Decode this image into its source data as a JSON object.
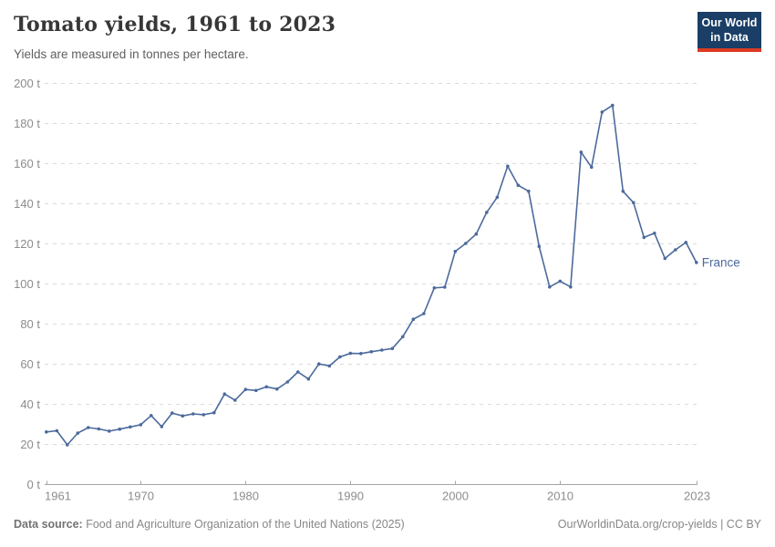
{
  "header": {
    "title": "Tomato yields, 1961 to 2023",
    "subtitle": "Yields are measured in tonnes per hectare.",
    "logo": {
      "line1": "Our World",
      "line2": "in Data"
    }
  },
  "footer": {
    "source_label": "Data source:",
    "source_text": " Food and Agriculture Organization of the United Nations (2025)",
    "link_text": "OurWorldinData.org/crop-yields | CC BY"
  },
  "colors": {
    "line": "#4c6a9c",
    "grid": "#dadada",
    "axis_line": "#a5a5a5",
    "axis_text": "#8c8c8c",
    "logo_bg": "#1a3e66",
    "logo_bar": "#dc3b24"
  },
  "chart_data": {
    "type": "line",
    "title": "Tomato yields, 1961 to 2023",
    "subtitle": "Yields are measured in tonnes per hectare.",
    "unit": "t",
    "xlabel": "",
    "ylabel": "",
    "ylim": [
      0,
      200
    ],
    "ytick_step": 20,
    "yticks": [
      0,
      20,
      40,
      60,
      80,
      100,
      120,
      140,
      160,
      180,
      200
    ],
    "xticks": [
      1961,
      1970,
      1980,
      1990,
      2000,
      2010,
      2023
    ],
    "grid": "dashed",
    "legend_position": "end-of-line",
    "x": [
      1961,
      1962,
      1963,
      1964,
      1965,
      1966,
      1967,
      1968,
      1969,
      1970,
      1971,
      1972,
      1973,
      1974,
      1975,
      1976,
      1977,
      1978,
      1979,
      1980,
      1981,
      1982,
      1983,
      1984,
      1985,
      1986,
      1987,
      1988,
      1989,
      1990,
      1991,
      1992,
      1993,
      1994,
      1995,
      1996,
      1997,
      1998,
      1999,
      2000,
      2001,
      2002,
      2003,
      2004,
      2005,
      2006,
      2007,
      2008,
      2009,
      2010,
      2011,
      2012,
      2013,
      2014,
      2015,
      2016,
      2017,
      2018,
      2019,
      2020,
      2021,
      2022,
      2023
    ],
    "series": [
      {
        "name": "France",
        "color": "#4c6a9c",
        "values": [
          26.0,
          26.6,
          19.6,
          25.4,
          28.2,
          27.5,
          26.4,
          27.4,
          28.5,
          29.6,
          34.2,
          28.7,
          35.4,
          34.0,
          35.0,
          34.6,
          35.6,
          44.9,
          41.8,
          47.2,
          46.7,
          48.5,
          47.4,
          50.9,
          55.9,
          52.4,
          59.9,
          58.9,
          63.4,
          65.2,
          65.1,
          66.0,
          66.8,
          67.6,
          73.5,
          82.2,
          85.0,
          97.8,
          98.2,
          116.0,
          120.0,
          124.7,
          135.5,
          143.0,
          158.5,
          149.0,
          146.0,
          118.5,
          98.3,
          101.2,
          98.3,
          165.5,
          158.0,
          185.5,
          188.8,
          146.0,
          140.3,
          123.0,
          125.1,
          112.5,
          116.8,
          120.5,
          110.5
        ]
      }
    ]
  }
}
